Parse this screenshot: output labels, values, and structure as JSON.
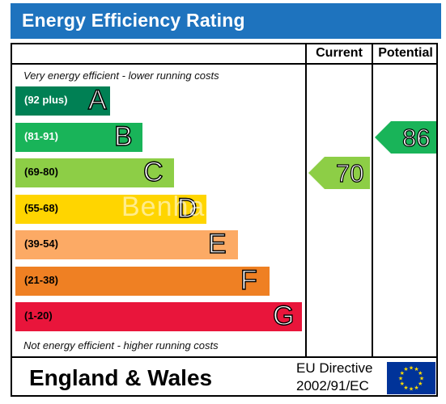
{
  "title": "Energy Efficiency Rating",
  "columns": {
    "current": "Current",
    "potential": "Potential"
  },
  "notes": {
    "top": "Very energy efficient - lower running costs",
    "bottom": "Not energy efficient - higher running costs"
  },
  "chart_data": {
    "type": "bar",
    "title": "Energy Efficiency Rating",
    "categories": [
      "A",
      "B",
      "C",
      "D",
      "E",
      "F",
      "G"
    ],
    "ranges": [
      "(92 plus)",
      "(81-91)",
      "(69-80)",
      "(55-68)",
      "(39-54)",
      "(21-38)",
      "(1-20)"
    ],
    "band_colors": [
      "#008054",
      "#19b459",
      "#8dce46",
      "#ffd500",
      "#fcaa65",
      "#ef8023",
      "#e9153b"
    ],
    "range_text_colors": [
      "#ffffff",
      "#ffffff",
      "#000000",
      "#000000",
      "#000000",
      "#000000",
      "#000000"
    ],
    "current": {
      "value": 70,
      "band": "C",
      "color": "#8dce46"
    },
    "potential": {
      "value": 86,
      "band": "B",
      "color": "#19b459"
    }
  },
  "footer": {
    "region": "England & Wales",
    "directive_line1": "EU Directive",
    "directive_line2": "2002/91/EC"
  },
  "watermark": "Benham"
}
